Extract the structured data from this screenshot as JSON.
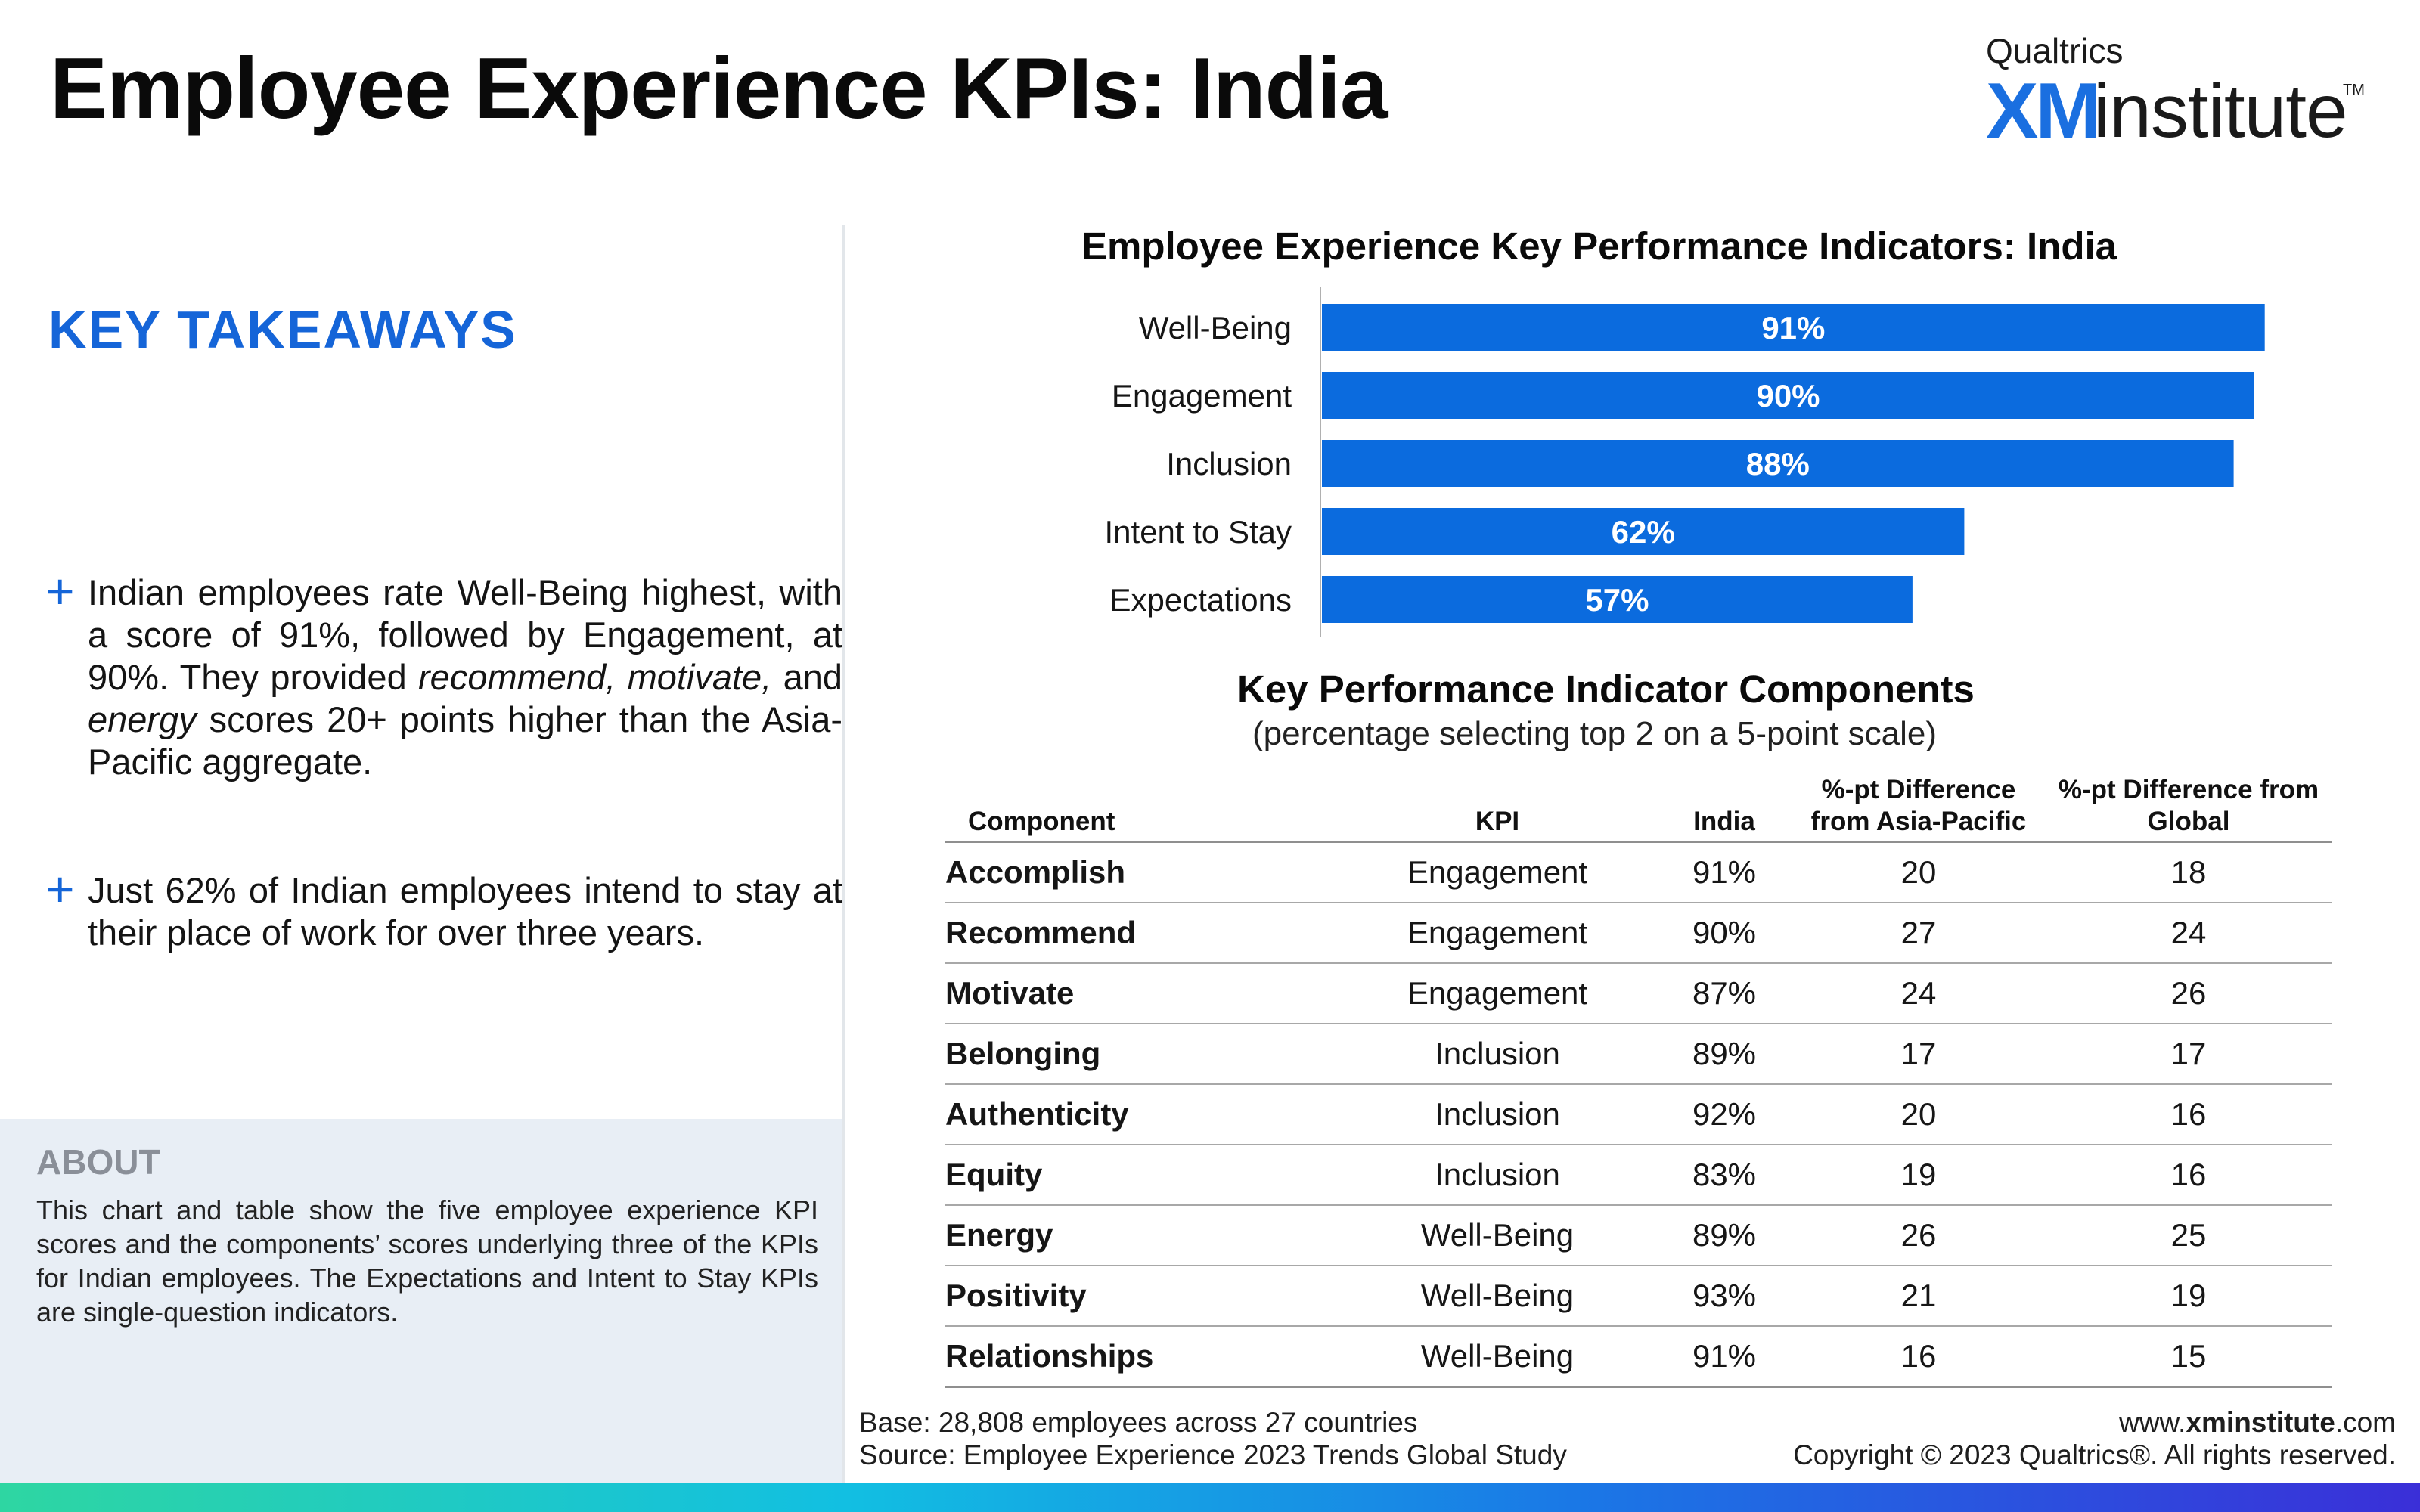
{
  "page": {
    "title": "Employee Experience KPIs: India"
  },
  "logo": {
    "top_text": "Qualtrics",
    "xm_text": "XM",
    "institute_text": "institute",
    "tm": "TM"
  },
  "takeaways": {
    "heading": "KEY TAKEAWAYS",
    "items": [
      {
        "t1": "Indian employees rate Well-Being highest, with a score of 91%, followed by Engagement, at 90%. They provided ",
        "em1": "recommend, motivate,",
        "t2": " and ",
        "em2": "energy",
        "t3": " scores 20+ points higher than the Asia-Pacific aggregate."
      },
      {
        "t1": "Just 62% of Indian employees intend to stay at their place of work for over three years."
      }
    ]
  },
  "about": {
    "heading": "ABOUT",
    "text": "This chart and table show the five employee experience KPI scores and the components’ scores underlying three of the KPIs for Indian employees. The Expectations and Intent to Stay KPIs are single-question indicators."
  },
  "chart_data": [
    {
      "type": "bar",
      "orientation": "horizontal",
      "title": "Employee Experience Key Performance Indicators: India",
      "categories": [
        "Well-Being",
        "Engagement",
        "Inclusion",
        "Intent to Stay",
        "Expectations"
      ],
      "values": [
        91,
        90,
        88,
        62,
        57
      ],
      "value_labels": [
        "91%",
        "90%",
        "88%",
        "62%",
        "57%"
      ],
      "xlim": [
        0,
        100
      ],
      "bar_color": "#0b6bde",
      "label_color": "#ffffff",
      "grid": false
    },
    {
      "type": "table",
      "title": "Key Performance Indicator Components",
      "subtitle": "(percentage selecting top 2 on a 5-point scale)",
      "columns": [
        "Component",
        "KPI",
        "India",
        "%-pt Difference from Asia-Pacific",
        "%-pt Difference from Global"
      ],
      "column_lines": [
        [
          "Component"
        ],
        [
          "KPI"
        ],
        [
          "India"
        ],
        [
          "%-pt Difference",
          "from Asia-Pacific"
        ],
        [
          "%-pt Difference from",
          "Global"
        ]
      ],
      "rows": [
        [
          "Accomplish",
          "Engagement",
          "91%",
          "20",
          "18"
        ],
        [
          "Recommend",
          "Engagement",
          "90%",
          "27",
          "24"
        ],
        [
          "Motivate",
          "Engagement",
          "87%",
          "24",
          "26"
        ],
        [
          "Belonging",
          "Inclusion",
          "89%",
          "17",
          "17"
        ],
        [
          "Authenticity",
          "Inclusion",
          "92%",
          "20",
          "16"
        ],
        [
          "Equity",
          "Inclusion",
          "83%",
          "19",
          "16"
        ],
        [
          "Energy",
          "Well-Being",
          "89%",
          "26",
          "25"
        ],
        [
          "Positivity",
          "Well-Being",
          "93%",
          "21",
          "19"
        ],
        [
          "Relationships",
          "Well-Being",
          "91%",
          "16",
          "15"
        ]
      ]
    }
  ],
  "footer": {
    "base": "Base: 28,808 employees across 27 countries",
    "source": "Source: Employee Experience 2023 Trends Global Study",
    "url_prefix": "www.",
    "url_bold": "xminstitute",
    "url_suffix": ".com",
    "copyright": "Copyright © 2023 Qualtrics®. All rights reserved."
  },
  "colors": {
    "accent": "#1565d8",
    "bar": "#0b6bde",
    "about_bg": "#e8eef5"
  }
}
